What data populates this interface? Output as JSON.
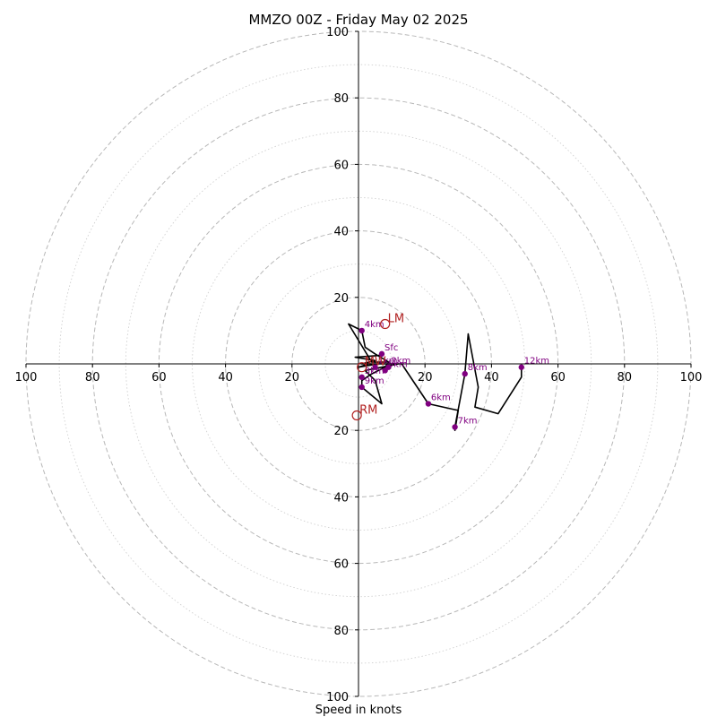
{
  "title": "MMZO 00Z - Friday May 02 2025",
  "xlabel": "Speed in knots",
  "chart_data": {
    "type": "hodograph",
    "title": "MMZO 00Z - Friday May 02 2025",
    "xlabel": "Speed in knots",
    "ylabel": "",
    "units": "knots",
    "range": [
      -100,
      100
    ],
    "ring_major_step": 20,
    "ring_minor_step": 10,
    "x_tick_labels": [
      "100",
      "80",
      "60",
      "40",
      "20",
      "20",
      "40",
      "60",
      "80",
      "100"
    ],
    "y_tick_labels": [
      "100",
      "80",
      "60",
      "40",
      "20",
      "20",
      "40",
      "60",
      "80",
      "100"
    ],
    "x_tick_values": [
      -100,
      -80,
      -60,
      -40,
      -20,
      20,
      40,
      60,
      80,
      100
    ],
    "y_tick_values": [
      100,
      80,
      60,
      40,
      20,
      -20,
      -40,
      -60,
      -80,
      -100
    ],
    "trace": [
      [
        7,
        3
      ],
      [
        6,
        2.5
      ],
      [
        -1,
        2
      ],
      [
        5,
        1
      ],
      [
        1,
        0
      ],
      [
        6,
        0
      ],
      [
        0,
        -1
      ],
      [
        3,
        0
      ],
      [
        10,
        0
      ],
      [
        5,
        3
      ],
      [
        2,
        5
      ],
      [
        1,
        10
      ],
      [
        -3,
        12
      ],
      [
        4,
        0.5
      ],
      [
        9,
        0.5
      ],
      [
        8,
        -1
      ],
      [
        4,
        -3
      ],
      [
        1,
        -5
      ],
      [
        1,
        -6
      ],
      [
        1,
        -7
      ],
      [
        7,
        -12
      ],
      [
        5,
        -5
      ],
      [
        2,
        -2
      ],
      [
        7,
        -1
      ],
      [
        12,
        0
      ],
      [
        13,
        0
      ],
      [
        21,
        -12
      ],
      [
        30,
        -14
      ],
      [
        29,
        -20
      ],
      [
        29,
        -19
      ],
      [
        32,
        -3
      ],
      [
        33,
        9
      ],
      [
        36,
        -7
      ],
      [
        35,
        -13
      ],
      [
        42,
        -15
      ],
      [
        49,
        -4
      ],
      [
        49,
        -1
      ]
    ],
    "height_points": [
      {
        "label": "Sfc",
        "u": 7,
        "v": 3
      },
      {
        "label": "1km",
        "u": 5,
        "v": -1
      },
      {
        "label": "2km",
        "u": 9,
        "v": -1
      },
      {
        "label": "3km",
        "u": 1,
        "v": -4
      },
      {
        "label": "4km",
        "u": 1,
        "v": 10
      },
      {
        "label": "5km",
        "u": 8,
        "v": -2
      },
      {
        "label": "6km",
        "u": 21,
        "v": -12
      },
      {
        "label": "7km",
        "u": 29,
        "v": -19
      },
      {
        "label": "8km",
        "u": 32,
        "v": -3
      },
      {
        "label": "9km",
        "u": 1,
        "v": -7
      },
      {
        "label": "12km",
        "u": 49,
        "v": -1
      }
    ],
    "storm_motion": [
      {
        "label": "LM",
        "u": 8,
        "v": 12
      },
      {
        "label": "MW",
        "u": 1,
        "v": -1
      },
      {
        "label": "RM",
        "u": -0.5,
        "v": -15.5
      }
    ],
    "colors": {
      "trace": "#000000",
      "height_points": "#800080",
      "storm_motion": "#b22222",
      "grid": "#bbbbbb",
      "axes": "#000000"
    },
    "grid": true
  }
}
